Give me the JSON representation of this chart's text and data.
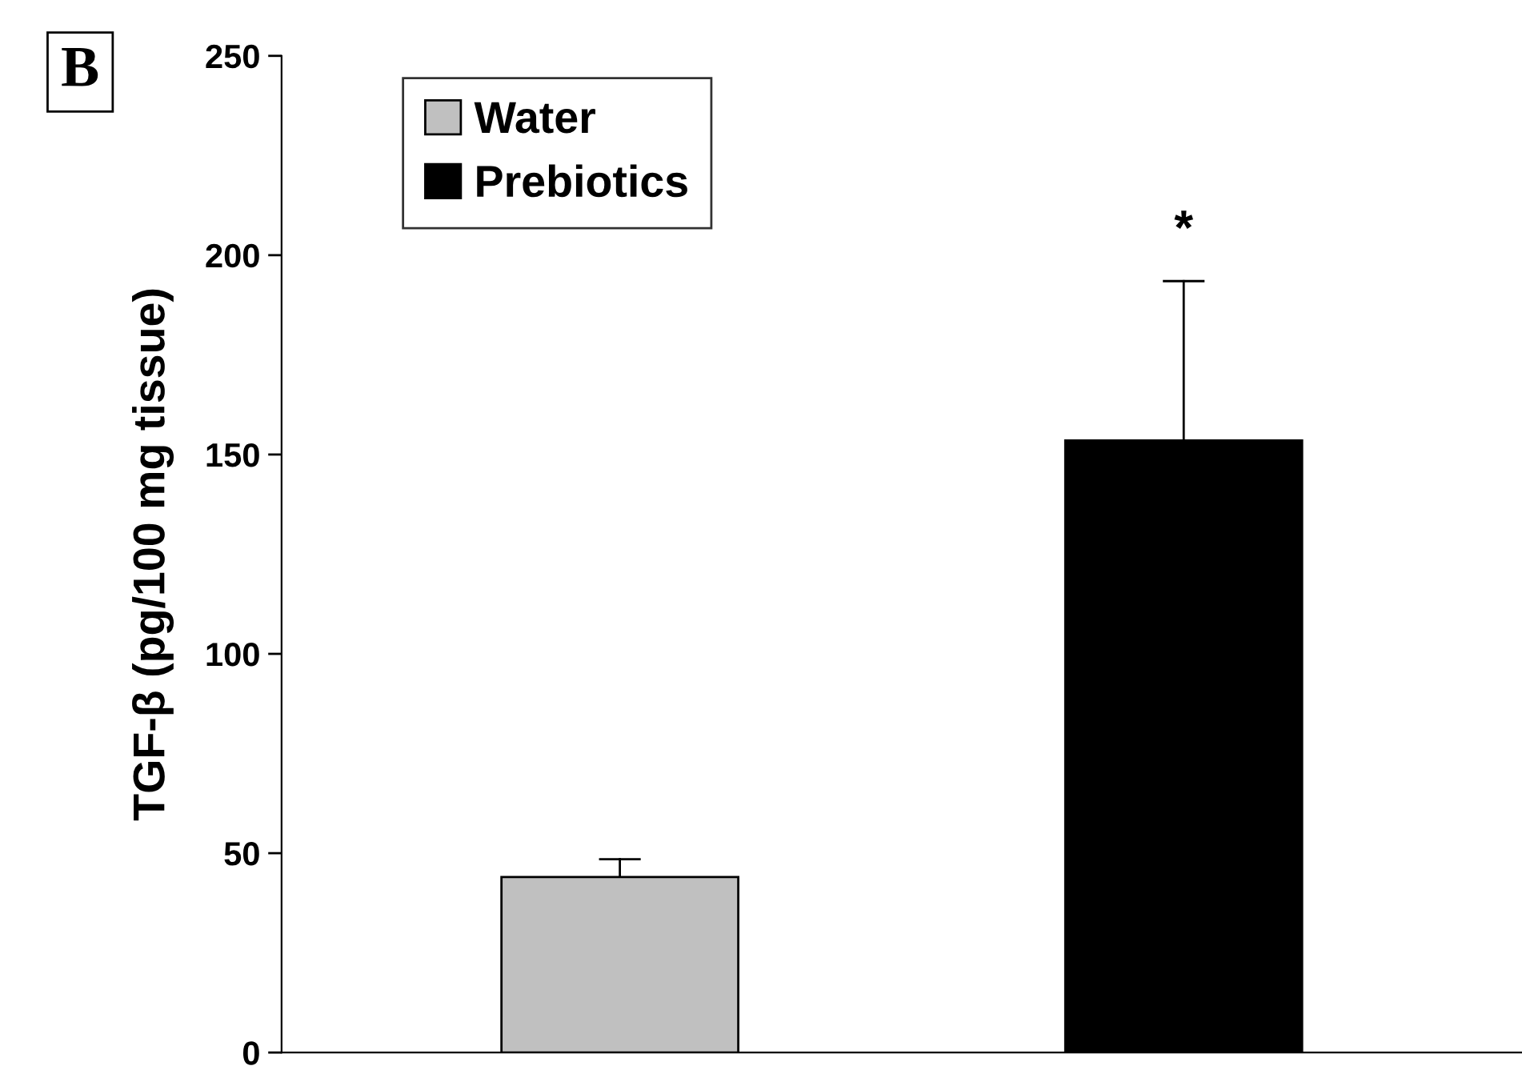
{
  "chart_data": {
    "type": "bar",
    "ylabel": "TGF-β (pg/100 mg tissue)",
    "categories": [
      null,
      null
    ],
    "series": [
      {
        "name": "Water",
        "color": "#c0c0c0",
        "values": [
          44,
          null
        ],
        "errors": [
          [
            44,
            48.5
          ],
          null
        ]
      },
      {
        "name": "Prebiotics",
        "color": "#000000",
        "values": [
          null,
          153.5
        ],
        "errors": [
          null,
          [
            153.5,
            193.5
          ]
        ]
      }
    ],
    "ylim": [
      0,
      250
    ],
    "yticks": [
      0,
      50,
      100,
      150,
      200,
      250
    ],
    "grid": false,
    "legend": "top left",
    "annotations": [
      "B",
      "*"
    ]
  }
}
